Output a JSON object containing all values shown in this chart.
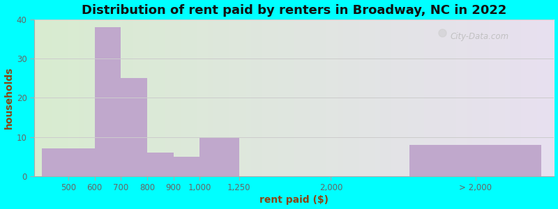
{
  "title": "Distribution of rent paid by renters in Broadway, NC in 2022",
  "xlabel": "rent paid ($)",
  "ylabel": "households",
  "bar_labels": [
    "500",
    "600",
    "700",
    "800",
    "900",
    "1,000",
    "1,250",
    "2,000",
    "> 2,000"
  ],
  "bar_values": [
    7,
    38,
    25,
    6,
    5,
    10,
    0,
    0,
    8
  ],
  "bar_color": "#c0a8cc",
  "ylim": [
    0,
    40
  ],
  "yticks": [
    0,
    10,
    20,
    30,
    40
  ],
  "background_color": "#00ffff",
  "plot_bg_left_color": "#d8ecd0",
  "plot_bg_right_color": "#e8e0f0",
  "title_fontsize": 13,
  "axis_label_fontsize": 10,
  "tick_fontsize": 8.5,
  "watermark_text": "City-Data.com",
  "bar_left_edges": [
    0.0,
    2.0,
    3.0,
    4.0,
    5.0,
    6.0,
    7.5,
    10.5,
    14.0
  ],
  "bar_widths": [
    2.0,
    1.0,
    1.0,
    1.0,
    1.0,
    1.5,
    1.5,
    0.01,
    5.0
  ],
  "tick_x_pos": [
    1.0,
    2.0,
    3.0,
    4.0,
    5.0,
    6.0,
    7.5,
    11.0,
    16.5
  ],
  "xlim": [
    -0.3,
    19.5
  ]
}
